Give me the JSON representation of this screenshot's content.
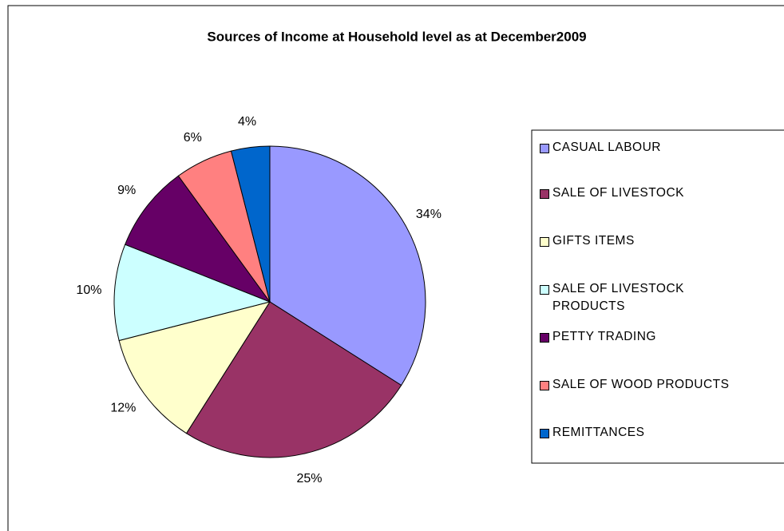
{
  "chart_data": {
    "type": "pie",
    "title": "Sources of Income at Household level as at December2009",
    "categories": [
      "CASUAL LABOUR",
      "SALE OF LIVESTOCK",
      "GIFTS ITEMS",
      "SALE OF LIVESTOCK PRODUCTS",
      "PETTY TRADING",
      "SALE OF WOOD PRODUCTS",
      "REMITTANCES"
    ],
    "values": [
      34,
      25,
      12,
      10,
      9,
      6,
      4
    ],
    "value_labels": [
      "34%",
      "25%",
      "12%",
      "10%",
      "9%",
      "6%",
      "4%"
    ],
    "colors": [
      "#9999ff",
      "#993366",
      "#ffffcc",
      "#ccffff",
      "#660066",
      "#ff8080",
      "#0066cc"
    ],
    "legend": "right"
  }
}
